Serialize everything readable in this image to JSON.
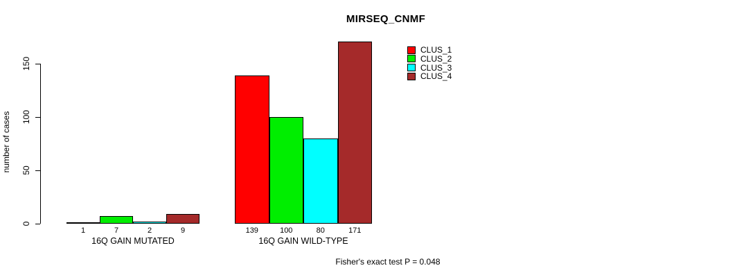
{
  "chart_data": {
    "type": "bar",
    "title": "MIRSEQ_CNMF",
    "ylabel": "number of cases",
    "xlabel": "",
    "annotation": "Fisher's exact test P = 0.048",
    "categories": [
      "16Q GAIN MUTATED",
      "16Q GAIN WILD-TYPE"
    ],
    "series": [
      {
        "name": "CLUS_1",
        "color": "#ff0000",
        "values": [
          1,
          139
        ]
      },
      {
        "name": "CLUS_2",
        "color": "#00ee00",
        "values": [
          7,
          100
        ]
      },
      {
        "name": "CLUS_3",
        "color": "#00ffff",
        "values": [
          2,
          80
        ]
      },
      {
        "name": "CLUS_4",
        "color": "#a52a2a",
        "values": [
          9,
          171
        ]
      }
    ],
    "yticks": [
      0,
      50,
      100,
      150
    ],
    "ylim": [
      0,
      175
    ],
    "grid": false,
    "show_values_under_bars": true,
    "legend_position": "top-right",
    "legend_entries": [
      "CLUS_1",
      "CLUS_2",
      "CLUS_3",
      "CLUS_4"
    ]
  },
  "colors": {
    "background": "#ffffff",
    "axis": "#000000",
    "text": "#000000"
  }
}
